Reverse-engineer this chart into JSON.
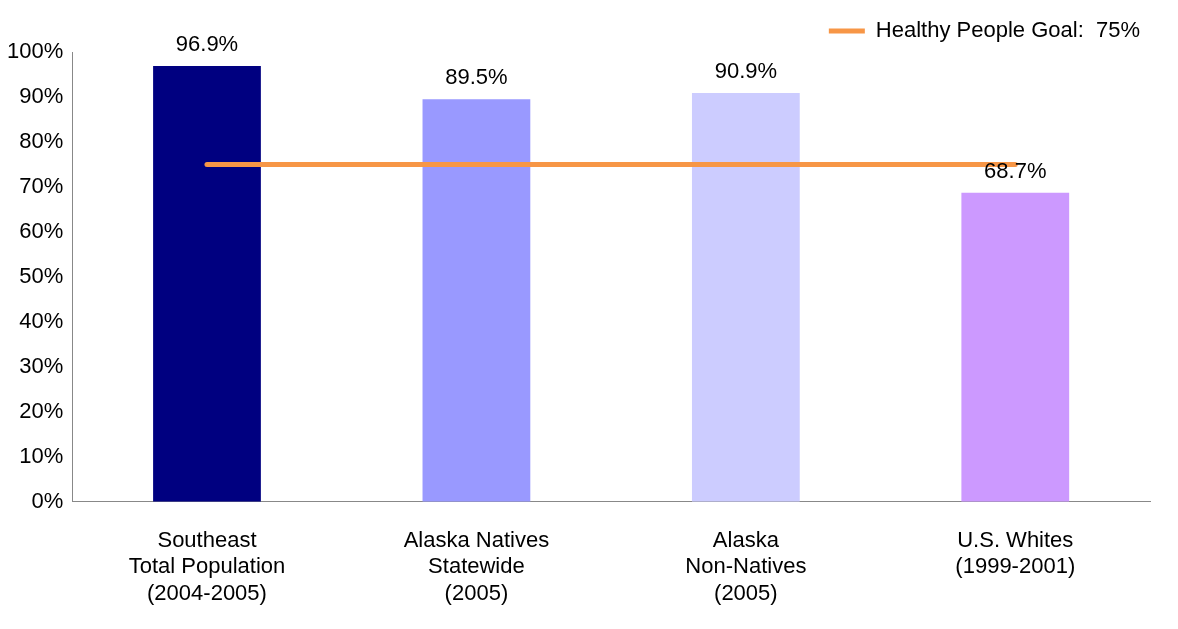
{
  "chart_data": {
    "type": "bar",
    "categories": [
      "Southeast\nTotal Population\n(2004-2005)",
      "Alaska Natives\nStatewide\n(2005)",
      "Alaska\nNon-Natives\n(2005)",
      "U.S. Whites\n(1999-2001)"
    ],
    "values": [
      96.9,
      89.5,
      90.9,
      68.7
    ],
    "colors": [
      "#000080",
      "#9999ff",
      "#ccccff",
      "#cc99ff"
    ],
    "value_labels": [
      "96.9%",
      "89.5%",
      "90.9%",
      "68.7%"
    ],
    "ylim": [
      0,
      100
    ],
    "yticks": [
      {
        "value": 0,
        "label": "0%"
      },
      {
        "value": 10,
        "label": "10%"
      },
      {
        "value": 20,
        "label": "20%"
      },
      {
        "value": 30,
        "label": "30%"
      },
      {
        "value": 40,
        "label": "40%"
      },
      {
        "value": 50,
        "label": "50%"
      },
      {
        "value": 60,
        "label": "60%"
      },
      {
        "value": 70,
        "label": "70%"
      },
      {
        "value": 80,
        "label": "80%"
      },
      {
        "value": 90,
        "label": "90%"
      },
      {
        "value": 100,
        "label": "100%"
      }
    ],
    "ref_lines": [
      {
        "axis": "y",
        "value": 75,
        "label": "Healthy People Goal:  75%",
        "color": "#f79646"
      }
    ],
    "legend": "top right"
  }
}
